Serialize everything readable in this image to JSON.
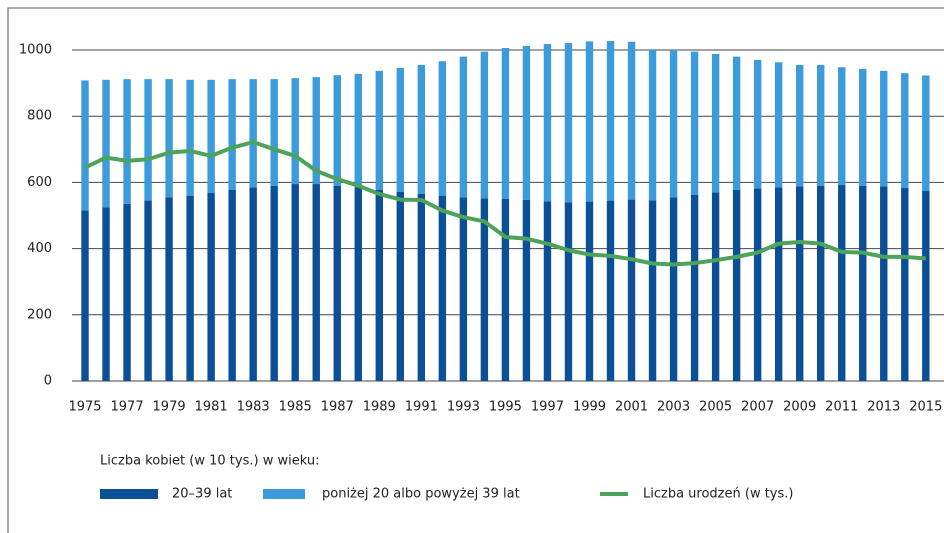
{
  "chart_data": {
    "type": "bar",
    "stacked": true,
    "legend_title": "Liczba kobiet (w 10 tys.) w wieku:",
    "categories": [
      "1975",
      null,
      "1977",
      null,
      "1979",
      null,
      "1981",
      null,
      "1983",
      null,
      "1985",
      null,
      "1987",
      null,
      "1989",
      null,
      "1991",
      null,
      "1993",
      null,
      "1995",
      null,
      "1997",
      null,
      "1999",
      null,
      "2001",
      null,
      "2003",
      null,
      "2005",
      null,
      "2007",
      null,
      "2009",
      null,
      "2011",
      null,
      "2013",
      null,
      "2015"
    ],
    "series": [
      {
        "name": "20–39 lat",
        "color": "#0b4f96",
        "type": "bar",
        "values": [
          515,
          525,
          535,
          545,
          555,
          560,
          568,
          578,
          585,
          590,
          595,
          595,
          590,
          585,
          578,
          572,
          565,
          560,
          555,
          552,
          550,
          547,
          543,
          540,
          542,
          545,
          548,
          546,
          555,
          562,
          570,
          577,
          582,
          585,
          588,
          590,
          592,
          590,
          588,
          583,
          575
        ]
      },
      {
        "name": "poniżej 20 albo powyżej 39 lat",
        "color": "#3b9bdb",
        "type": "bar",
        "values": [
          393,
          385,
          377,
          367,
          357,
          350,
          342,
          334,
          327,
          322,
          320,
          323,
          334,
          343,
          359,
          374,
          390,
          406,
          425,
          443,
          456,
          465,
          475,
          481,
          484,
          482,
          477,
          454,
          445,
          433,
          418,
          403,
          388,
          378,
          367,
          365,
          356,
          353,
          349,
          347,
          348
        ]
      },
      {
        "name": "Liczba urodzeń (w tys.)",
        "color": "#4ea35b",
        "type": "line",
        "values": [
          645,
          675,
          665,
          670,
          690,
          695,
          680,
          705,
          722,
          700,
          680,
          635,
          610,
          590,
          565,
          548,
          547,
          515,
          495,
          482,
          435,
          430,
          415,
          395,
          382,
          378,
          368,
          355,
          352,
          356,
          365,
          375,
          388,
          415,
          420,
          415,
          390,
          388,
          375,
          375,
          370
        ]
      }
    ],
    "ylim": [
      0,
      1000
    ],
    "yticks": [
      0,
      200,
      400,
      600,
      800,
      1000
    ],
    "grid": true
  }
}
